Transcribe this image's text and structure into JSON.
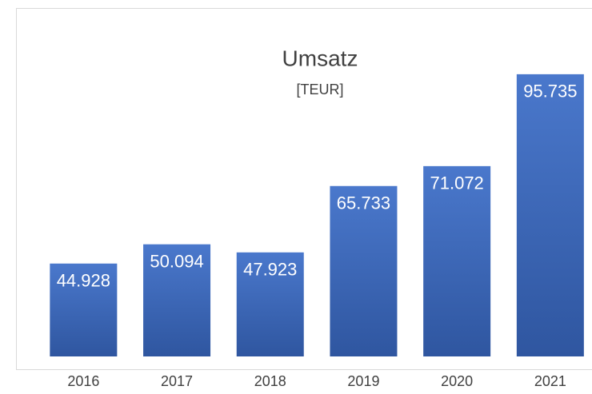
{
  "chart_data": {
    "type": "bar",
    "title": "Umsatz",
    "subtitle": "[TEUR]",
    "categories": [
      "2016",
      "2017",
      "2018",
      "2019",
      "2020",
      "2021"
    ],
    "values": [
      44928,
      50094,
      47923,
      65733,
      71072,
      95735
    ],
    "value_labels": [
      "44.928",
      "50.094",
      "47.923",
      "65.733",
      "71.072",
      "95.735"
    ],
    "color": "#4472c4",
    "ylim": [
      20000,
      100000
    ]
  }
}
